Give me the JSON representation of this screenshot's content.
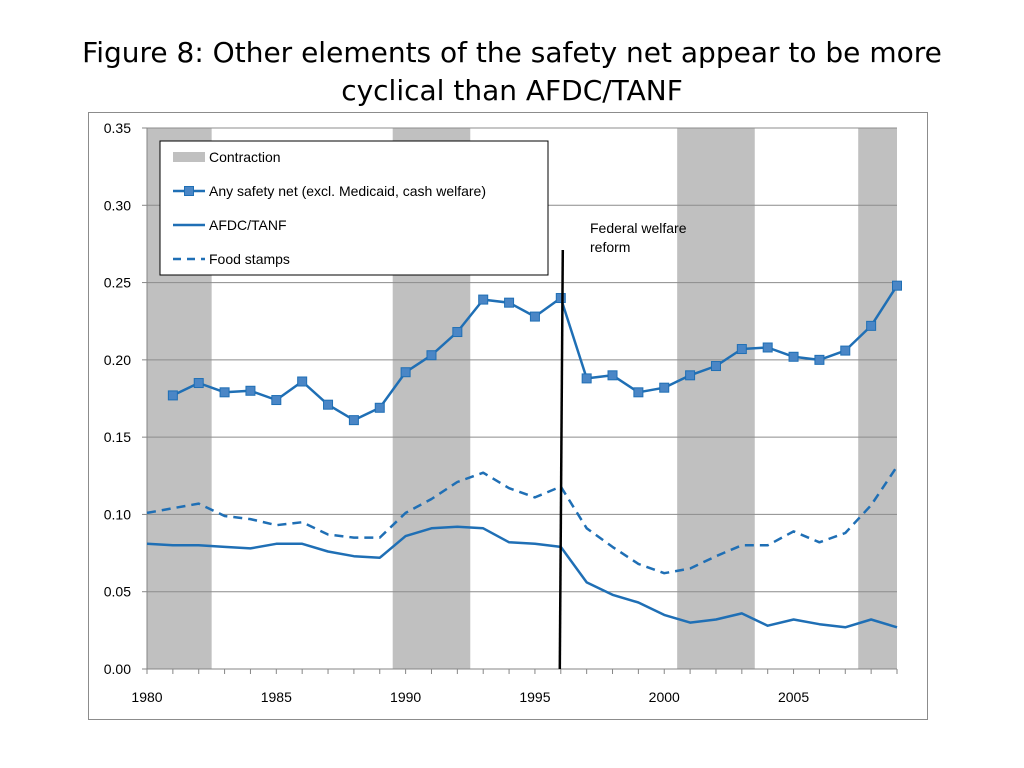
{
  "title": "Figure 8: Other elements of the safety net appear to be more cyclical than AFDC/TANF",
  "chart_data": {
    "type": "line",
    "title": "Figure 8: Other elements of the safety net appear to be more cyclical than AFDC/TANF",
    "xlabel": "",
    "ylabel": "",
    "xlim": [
      1980,
      2009
    ],
    "ylim": [
      0,
      0.35
    ],
    "x_ticks": [
      1980,
      1985,
      1990,
      1995,
      2000,
      2005
    ],
    "y_ticks": [
      "0.00",
      "0.05",
      "0.10",
      "0.15",
      "0.20",
      "0.25",
      "0.30",
      "0.35"
    ],
    "grid": "horizontal",
    "legend_position": "top-left",
    "contractions": [
      [
        1980,
        1982.5
      ],
      [
        1989.5,
        1992.5
      ],
      [
        2000.5,
        2003.5
      ],
      [
        2007.5,
        2009
      ]
    ],
    "contraction_label": "Contraction",
    "series": [
      {
        "name": "Any safety net (excl. Medicaid, cash welfare)",
        "style": "line-square-markers",
        "color": "#1f6fb5",
        "marker_color": "#4a86c6",
        "x": [
          1981,
          1982,
          1983,
          1984,
          1985,
          1986,
          1987,
          1988,
          1989,
          1990,
          1991,
          1992,
          1993,
          1994,
          1995,
          1996,
          1997,
          1998,
          1999,
          2000,
          2001,
          2002,
          2003,
          2004,
          2005,
          2006,
          2007,
          2008,
          2009
        ],
        "values": [
          0.177,
          0.185,
          0.179,
          0.18,
          0.174,
          0.186,
          0.171,
          0.161,
          0.169,
          0.192,
          0.203,
          0.218,
          0.239,
          0.237,
          0.228,
          0.24,
          0.188,
          0.19,
          0.179,
          0.182,
          0.19,
          0.196,
          0.207,
          0.208,
          0.202,
          0.2,
          0.206,
          0.222,
          0.248
        ]
      },
      {
        "name": "AFDC/TANF",
        "style": "solid",
        "color": "#1f6fb5",
        "x": [
          1980,
          1981,
          1982,
          1983,
          1984,
          1985,
          1986,
          1987,
          1988,
          1989,
          1990,
          1991,
          1992,
          1993,
          1994,
          1995,
          1996,
          1997,
          1998,
          1999,
          2000,
          2001,
          2002,
          2003,
          2004,
          2005,
          2006,
          2007,
          2008,
          2009
        ],
        "values": [
          0.081,
          0.08,
          0.08,
          0.079,
          0.078,
          0.081,
          0.081,
          0.076,
          0.073,
          0.072,
          0.086,
          0.091,
          0.092,
          0.091,
          0.082,
          0.081,
          0.079,
          0.056,
          0.048,
          0.043,
          0.035,
          0.03,
          0.032,
          0.036,
          0.028,
          0.032,
          0.029,
          0.027,
          0.032,
          0.027
        ]
      },
      {
        "name": "Food stamps",
        "style": "dashed",
        "color": "#1f6fb5",
        "x": [
          1980,
          1981,
          1982,
          1983,
          1984,
          1985,
          1986,
          1987,
          1988,
          1989,
          1990,
          1991,
          1992,
          1993,
          1994,
          1995,
          1996,
          1997,
          1998,
          1999,
          2000,
          2001,
          2002,
          2003,
          2004,
          2005,
          2006,
          2007,
          2008,
          2009
        ],
        "values": [
          0.101,
          0.104,
          0.107,
          0.099,
          0.097,
          0.093,
          0.095,
          0.087,
          0.085,
          0.085,
          0.101,
          0.11,
          0.121,
          0.127,
          0.117,
          0.111,
          0.118,
          0.091,
          0.079,
          0.068,
          0.062,
          0.065,
          0.073,
          0.08,
          0.08,
          0.089,
          0.082,
          0.088,
          0.106,
          0.131
        ]
      }
    ],
    "annotation": {
      "text_lines": [
        "Federal welfare",
        "reform"
      ],
      "x": 1996
    }
  }
}
